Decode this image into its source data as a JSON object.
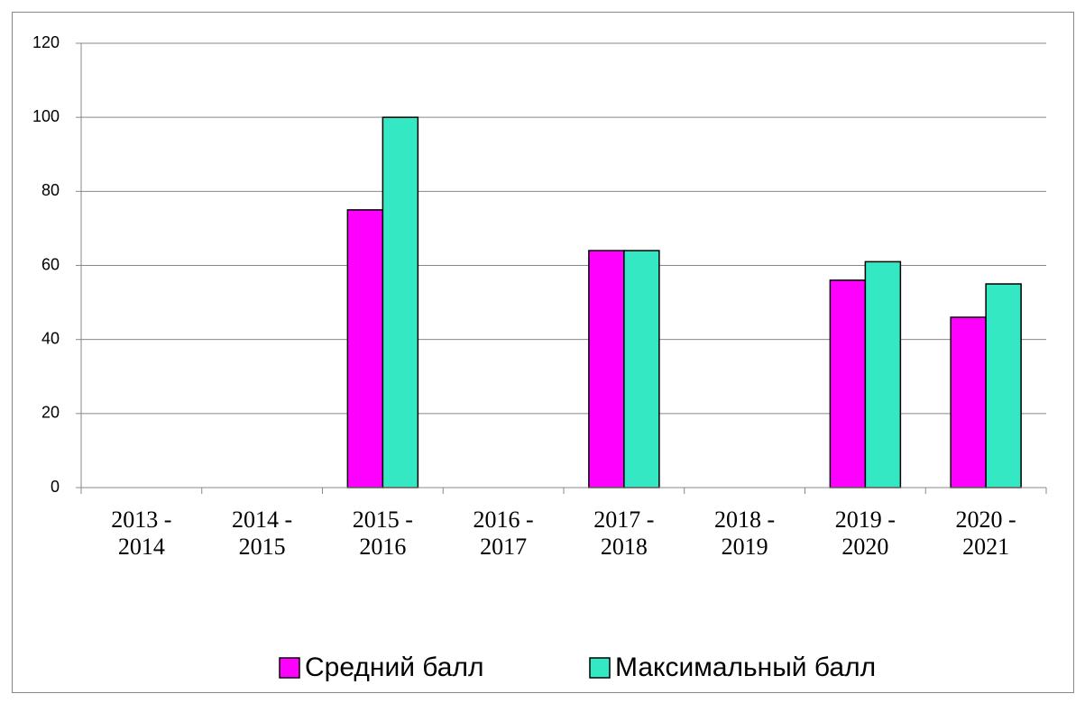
{
  "chart_data": {
    "type": "bar",
    "categories": [
      "2013 - 2014",
      "2014 - 2015",
      "2015 - 2016",
      "2016 - 2017",
      "2017 - 2018",
      "2018 - 2019",
      "2019 - 2020",
      "2020 - 2021"
    ],
    "series": [
      {
        "name": "Средний балл",
        "color": "#ff00ff",
        "values": [
          null,
          null,
          75,
          null,
          64,
          null,
          56,
          46
        ]
      },
      {
        "name": "Максимальный балл",
        "color": "#33e8c2",
        "values": [
          null,
          null,
          100,
          null,
          64,
          null,
          61,
          55
        ]
      }
    ],
    "ylim": [
      0,
      120
    ],
    "yticks": [
      0,
      20,
      40,
      60,
      80,
      100,
      120
    ],
    "grid": true,
    "legend": "bottom"
  }
}
